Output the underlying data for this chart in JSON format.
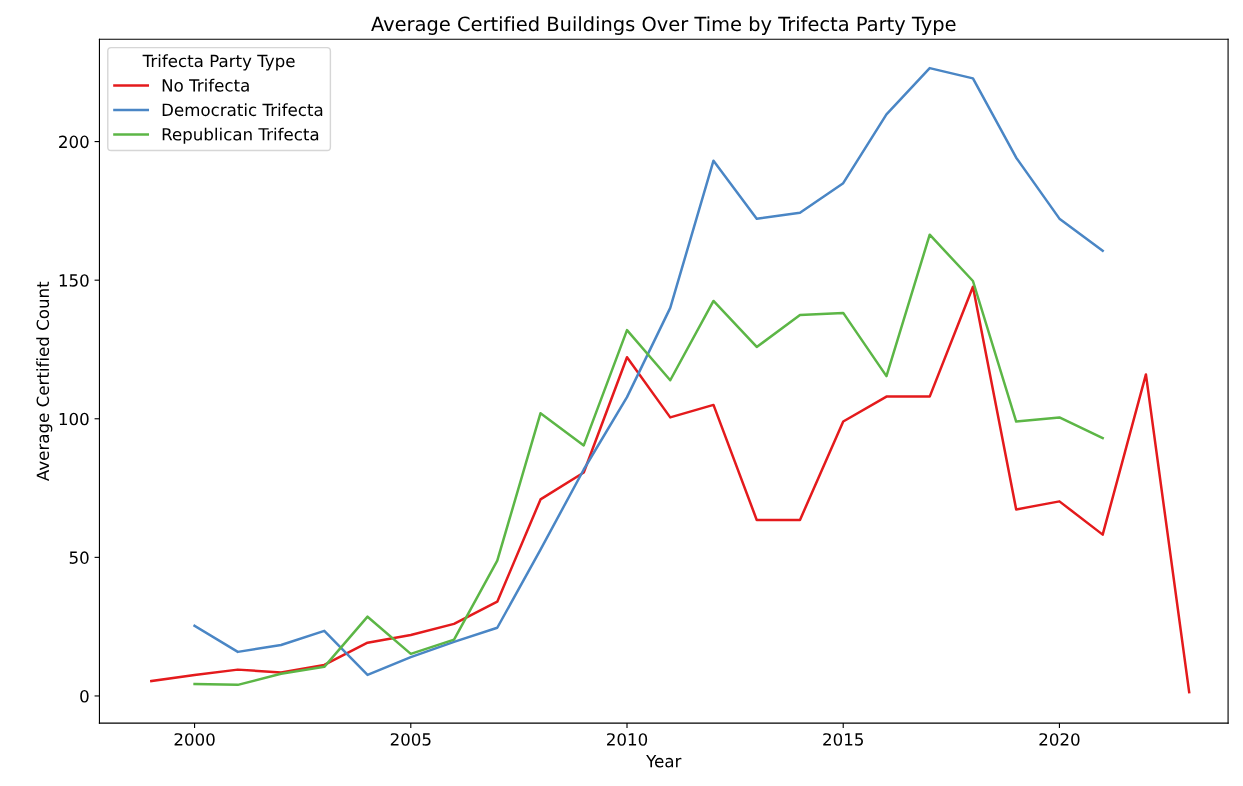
{
  "chart_data": {
    "type": "line",
    "title": "Average Certified Buildings Over Time by Trifecta Party Type",
    "xlabel": "Year",
    "ylabel": "Average Certified Count",
    "legend_title": "Trifecta Party Type",
    "legend": "top left",
    "grid": false,
    "marker": "none",
    "line_style": "solid",
    "xlim": [
      1997.8,
      2023.9
    ],
    "ylim": [
      -9.8,
      236.9
    ],
    "xticks": [
      2000,
      2005,
      2010,
      2015,
      2020
    ],
    "yticks": [
      0,
      50,
      100,
      150,
      200
    ],
    "series": [
      {
        "name": "No Trifecta",
        "color": "#e41a1c",
        "x": [
          1999,
          2000,
          2001,
          2002,
          2003,
          2004,
          2005,
          2006,
          2007,
          2008,
          2009,
          2010,
          2011,
          2012,
          2013,
          2014,
          2015,
          2016,
          2017,
          2018,
          2019,
          2020,
          2021,
          2022,
          2023
        ],
        "values": [
          5.4,
          7.6,
          9.5,
          8.5,
          11.2,
          19.2,
          22,
          26,
          34,
          70.9,
          80.6,
          122.2,
          100.5,
          105,
          63.5,
          63.5,
          99,
          108,
          108,
          147.6,
          67.3,
          70.2,
          58.2,
          116,
          1.4
        ]
      },
      {
        "name": "Democratic Trifecta",
        "color": "#4a86c5",
        "x": [
          2000,
          2001,
          2002,
          2003,
          2004,
          2005,
          2006,
          2007,
          2008,
          2009,
          2010,
          2011,
          2012,
          2013,
          2014,
          2015,
          2016,
          2017,
          2018,
          2019,
          2020,
          2021
        ],
        "values": [
          25.3,
          15.9,
          18.4,
          23.5,
          7.6,
          14,
          19.5,
          24.6,
          52.8,
          81.7,
          107.8,
          140,
          193.1,
          172.2,
          174.3,
          185,
          209.8,
          226.5,
          222.8,
          194.2,
          172.2,
          160.6
        ]
      },
      {
        "name": "Republican Trifecta",
        "color": "#5cb646",
        "x": [
          2000,
          2001,
          2002,
          2003,
          2004,
          2005,
          2006,
          2007,
          2008,
          2009,
          2010,
          2011,
          2012,
          2013,
          2014,
          2015,
          2016,
          2017,
          2018,
          2019,
          2020,
          2021
        ],
        "values": [
          4.3,
          4,
          8,
          10.5,
          28.6,
          15.2,
          20.3,
          48.8,
          102,
          90.4,
          132,
          113.9,
          142.5,
          125.9,
          137.4,
          138.2,
          115.4,
          166.4,
          149.7,
          99,
          100.5,
          93
        ]
      }
    ]
  }
}
